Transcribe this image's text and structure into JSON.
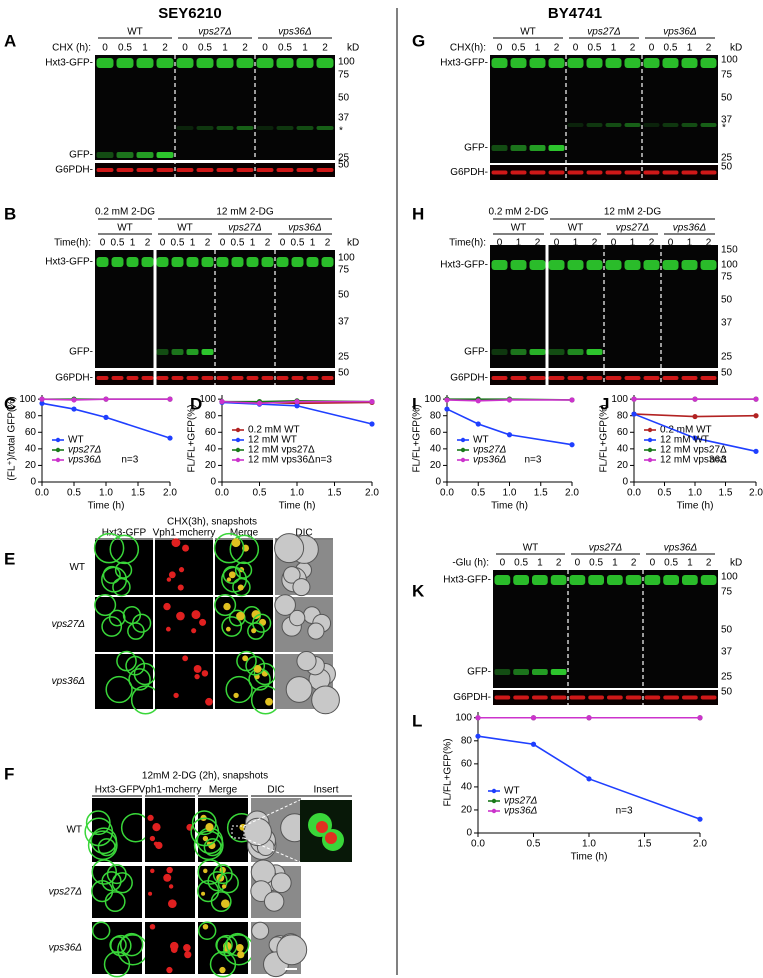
{
  "headers": [
    "SEY6210",
    "BY4741"
  ],
  "blots": [
    {
      "letter": "A",
      "groups": [
        "WT",
        "vps27Δ",
        "vps36Δ"
      ],
      "time_label": "CHX (h):",
      "times": [
        "0",
        "0.5",
        "1",
        "2"
      ],
      "bands": [
        "Hxt3-GFP-",
        "GFP-",
        "G6PDH-"
      ],
      "kd": "kD",
      "markers": [
        "100",
        "75",
        "50",
        "37",
        "25",
        "50"
      ],
      "asterisk": "*"
    },
    {
      "letter": "B",
      "treatments": [
        "0.2 mM 2-DG",
        "12 mM 2-DG"
      ],
      "groups": [
        "WT",
        "WT",
        "vps27Δ",
        "vps36Δ"
      ],
      "time_label": "Time(h):",
      "times": [
        "0",
        "0.5",
        "1",
        "2"
      ],
      "bands": [
        "Hxt3-GFP-",
        "GFP-",
        "G6PDH-"
      ],
      "kd": "kD",
      "markers": [
        "100",
        "75",
        "50",
        "37",
        "25",
        "50"
      ]
    },
    {
      "letter": "G",
      "groups": [
        "WT",
        "vps27Δ",
        "vps36Δ"
      ],
      "time_label": "CHX(h):",
      "times": [
        "0",
        "0.5",
        "1",
        "2"
      ],
      "bands": [
        "Hxt3-GFP-",
        "GFP-",
        "G6PDH-"
      ],
      "kd": "kD",
      "markers": [
        "100",
        "75",
        "50",
        "37",
        "25",
        "50"
      ],
      "asterisk": "*"
    },
    {
      "letter": "H",
      "treatments": [
        "0.2 mM 2-DG",
        "12 mM 2-DG"
      ],
      "groups": [
        "WT",
        "WT",
        "vps27Δ",
        "vps36Δ"
      ],
      "time_label": "Time(h):",
      "times": [
        "0",
        "1",
        "2"
      ],
      "bands": [
        "Hxt3-GFP-",
        "GFP-",
        "G6PDH-"
      ],
      "markers": [
        "150",
        "100",
        "75",
        "50",
        "37",
        "25",
        "50"
      ]
    },
    {
      "letter": "K",
      "groups": [
        "WT",
        "vps27Δ",
        "vps36Δ"
      ],
      "time_label": "-Glu (h):",
      "times": [
        "0",
        "0.5",
        "1",
        "2"
      ],
      "bands": [
        "Hxt3-GFP-",
        "GFP-",
        "G6PDH-"
      ],
      "kd": "kD",
      "markers": [
        "100",
        "75",
        "50",
        "37",
        "25",
        "50"
      ]
    }
  ],
  "micrographs": [
    {
      "letter": "E",
      "title": "CHX(3h), snapshots",
      "columns": [
        "Hxt3-GFP",
        "Vph1-mcherry",
        "Merge",
        "DIC"
      ],
      "rows": [
        "WT",
        "vps27Δ",
        "vps36Δ"
      ]
    },
    {
      "letter": "F",
      "title": "12mM 2-DG (2h), snapshots",
      "columns": [
        "Hxt3-GFP",
        "Vph1-mcherry",
        "Merge",
        "DIC"
      ],
      "rows": [
        "WT",
        "vps27Δ",
        "vps36Δ"
      ],
      "insert": "Insert"
    }
  ],
  "chart_data": [
    {
      "type": "line",
      "panel": "C",
      "ylabel": "(FL⁺)/total GFP(%)",
      "xlabel": "Time (h)",
      "annotation": "n=3",
      "x": [
        0,
        0.5,
        1,
        2
      ],
      "xlim": [
        0,
        2
      ],
      "ylim": [
        0,
        105
      ],
      "xticks": [
        {
          "value": 0,
          "label": "0.0"
        },
        {
          "value": 0.5,
          "label": "0.5"
        },
        {
          "value": 1,
          "label": "1.0"
        },
        {
          "value": 1.5,
          "label": "1.5"
        },
        {
          "value": 2,
          "label": "2.0"
        }
      ],
      "yticks": [
        0,
        20,
        40,
        60,
        80,
        100
      ],
      "legend": "lower left",
      "series": [
        {
          "name": "WT",
          "color": "#1f3fff",
          "values": [
            95,
            88,
            78,
            53
          ]
        },
        {
          "name": "vps27Δ",
          "color": "#1a7a1a",
          "values": [
            100,
            100,
            100,
            100
          ]
        },
        {
          "name": "vps36Δ",
          "color": "#cc33cc",
          "values": [
            100,
            99,
            100,
            100
          ]
        }
      ]
    },
    {
      "type": "line",
      "panel": "D",
      "ylabel": "FL/FL+GFP(%)",
      "xlabel": "Time (h)",
      "annotation": "n=3",
      "x": [
        0,
        0.5,
        1,
        2
      ],
      "xlim": [
        0,
        2
      ],
      "ylim": [
        0,
        105
      ],
      "xticks": [
        {
          "value": 0,
          "label": "0.0"
        },
        {
          "value": 0.5,
          "label": "0.5"
        },
        {
          "value": 1,
          "label": "1.0"
        },
        {
          "value": 1.5,
          "label": "1.5"
        },
        {
          "value": 2,
          "label": "2.0"
        }
      ],
      "yticks": [
        0,
        20,
        40,
        60,
        80,
        100
      ],
      "legend": "lower left",
      "series": [
        {
          "name": "0.2 mM WT",
          "color": "#b22222",
          "values": [
            97,
            96,
            95,
            96
          ]
        },
        {
          "name": "12 mM WT",
          "color": "#1f3fff",
          "values": [
            96,
            94,
            92,
            70
          ]
        },
        {
          "name": "12 mM vps27Δ",
          "color": "#1a7a1a",
          "values": [
            97,
            97,
            98,
            97
          ]
        },
        {
          "name": "12 mM vps36Δ",
          "color": "#cc33cc",
          "values": [
            97,
            95,
            97,
            97
          ]
        }
      ]
    },
    {
      "type": "line",
      "panel": "I",
      "ylabel": "FL/FL+GFP(%)",
      "xlabel": "Time (h)",
      "annotation": "n=3",
      "x": [
        0,
        0.5,
        1,
        2
      ],
      "xlim": [
        0,
        2
      ],
      "ylim": [
        0,
        105
      ],
      "xticks": [
        {
          "value": 0,
          "label": "0.0"
        },
        {
          "value": 0.5,
          "label": "0.5"
        },
        {
          "value": 1,
          "label": "1.0"
        },
        {
          "value": 1.5,
          "label": "1.5"
        },
        {
          "value": 2,
          "label": "2.0"
        }
      ],
      "yticks": [
        0,
        20,
        40,
        60,
        80,
        100
      ],
      "legend": "lower left",
      "series": [
        {
          "name": "WT",
          "color": "#1f3fff",
          "values": [
            88,
            70,
            57,
            45
          ]
        },
        {
          "name": "vps27Δ",
          "color": "#1a7a1a",
          "values": [
            100,
            100,
            100,
            99
          ]
        },
        {
          "name": "vps36Δ",
          "color": "#cc33cc",
          "values": [
            99,
            98,
            99,
            99
          ]
        }
      ]
    },
    {
      "type": "line",
      "panel": "J",
      "ylabel": "FL/FL+GFP(%)",
      "xlabel": "Time (h)",
      "annotation": "n=3",
      "x": [
        0,
        1,
        2
      ],
      "xlim": [
        0,
        2
      ],
      "ylim": [
        0,
        105
      ],
      "xticks": [
        {
          "value": 0,
          "label": "0.0"
        },
        {
          "value": 0.5,
          "label": "0.5"
        },
        {
          "value": 1,
          "label": "1.0"
        },
        {
          "value": 1.5,
          "label": "1.5"
        },
        {
          "value": 2,
          "label": "2.0"
        }
      ],
      "yticks": [
        0,
        20,
        40,
        60,
        80,
        100
      ],
      "legend": "lower left",
      "series": [
        {
          "name": "0.2 mM WT",
          "color": "#b22222",
          "values": [
            82,
            79,
            80
          ]
        },
        {
          "name": "12 mM  WT",
          "color": "#1f3fff",
          "values": [
            82,
            53,
            37
          ]
        },
        {
          "name": "12 mM vps27Δ",
          "color": "#1a7a1a",
          "values": [
            100,
            100,
            100
          ]
        },
        {
          "name": "12 mM vps36Δ",
          "color": "#cc33cc",
          "values": [
            100,
            100,
            100
          ]
        }
      ]
    },
    {
      "type": "line",
      "panel": "L",
      "ylabel": "FL/FL+GFP(%)",
      "xlabel": "Time (h)",
      "annotation": "n=3",
      "x": [
        0,
        0.5,
        1,
        2
      ],
      "xlim": [
        0,
        2
      ],
      "ylim": [
        0,
        105
      ],
      "xticks": [
        {
          "value": 0,
          "label": "0.0"
        },
        {
          "value": 0.5,
          "label": "0.5"
        },
        {
          "value": 1,
          "label": "1.0"
        },
        {
          "value": 1.5,
          "label": "1.5"
        },
        {
          "value": 2,
          "label": "2.0"
        }
      ],
      "yticks": [
        0,
        20,
        40,
        60,
        80,
        100
      ],
      "legend": "lower left",
      "series": [
        {
          "name": "WT",
          "color": "#1f3fff",
          "values": [
            84,
            77,
            47,
            12
          ]
        },
        {
          "name": "vps27Δ",
          "color": "#1a7a1a",
          "values": [
            100,
            100,
            100,
            100
          ]
        },
        {
          "name": "vps36Δ",
          "color": "#cc33cc",
          "values": [
            100,
            100,
            100,
            100
          ]
        }
      ]
    }
  ]
}
